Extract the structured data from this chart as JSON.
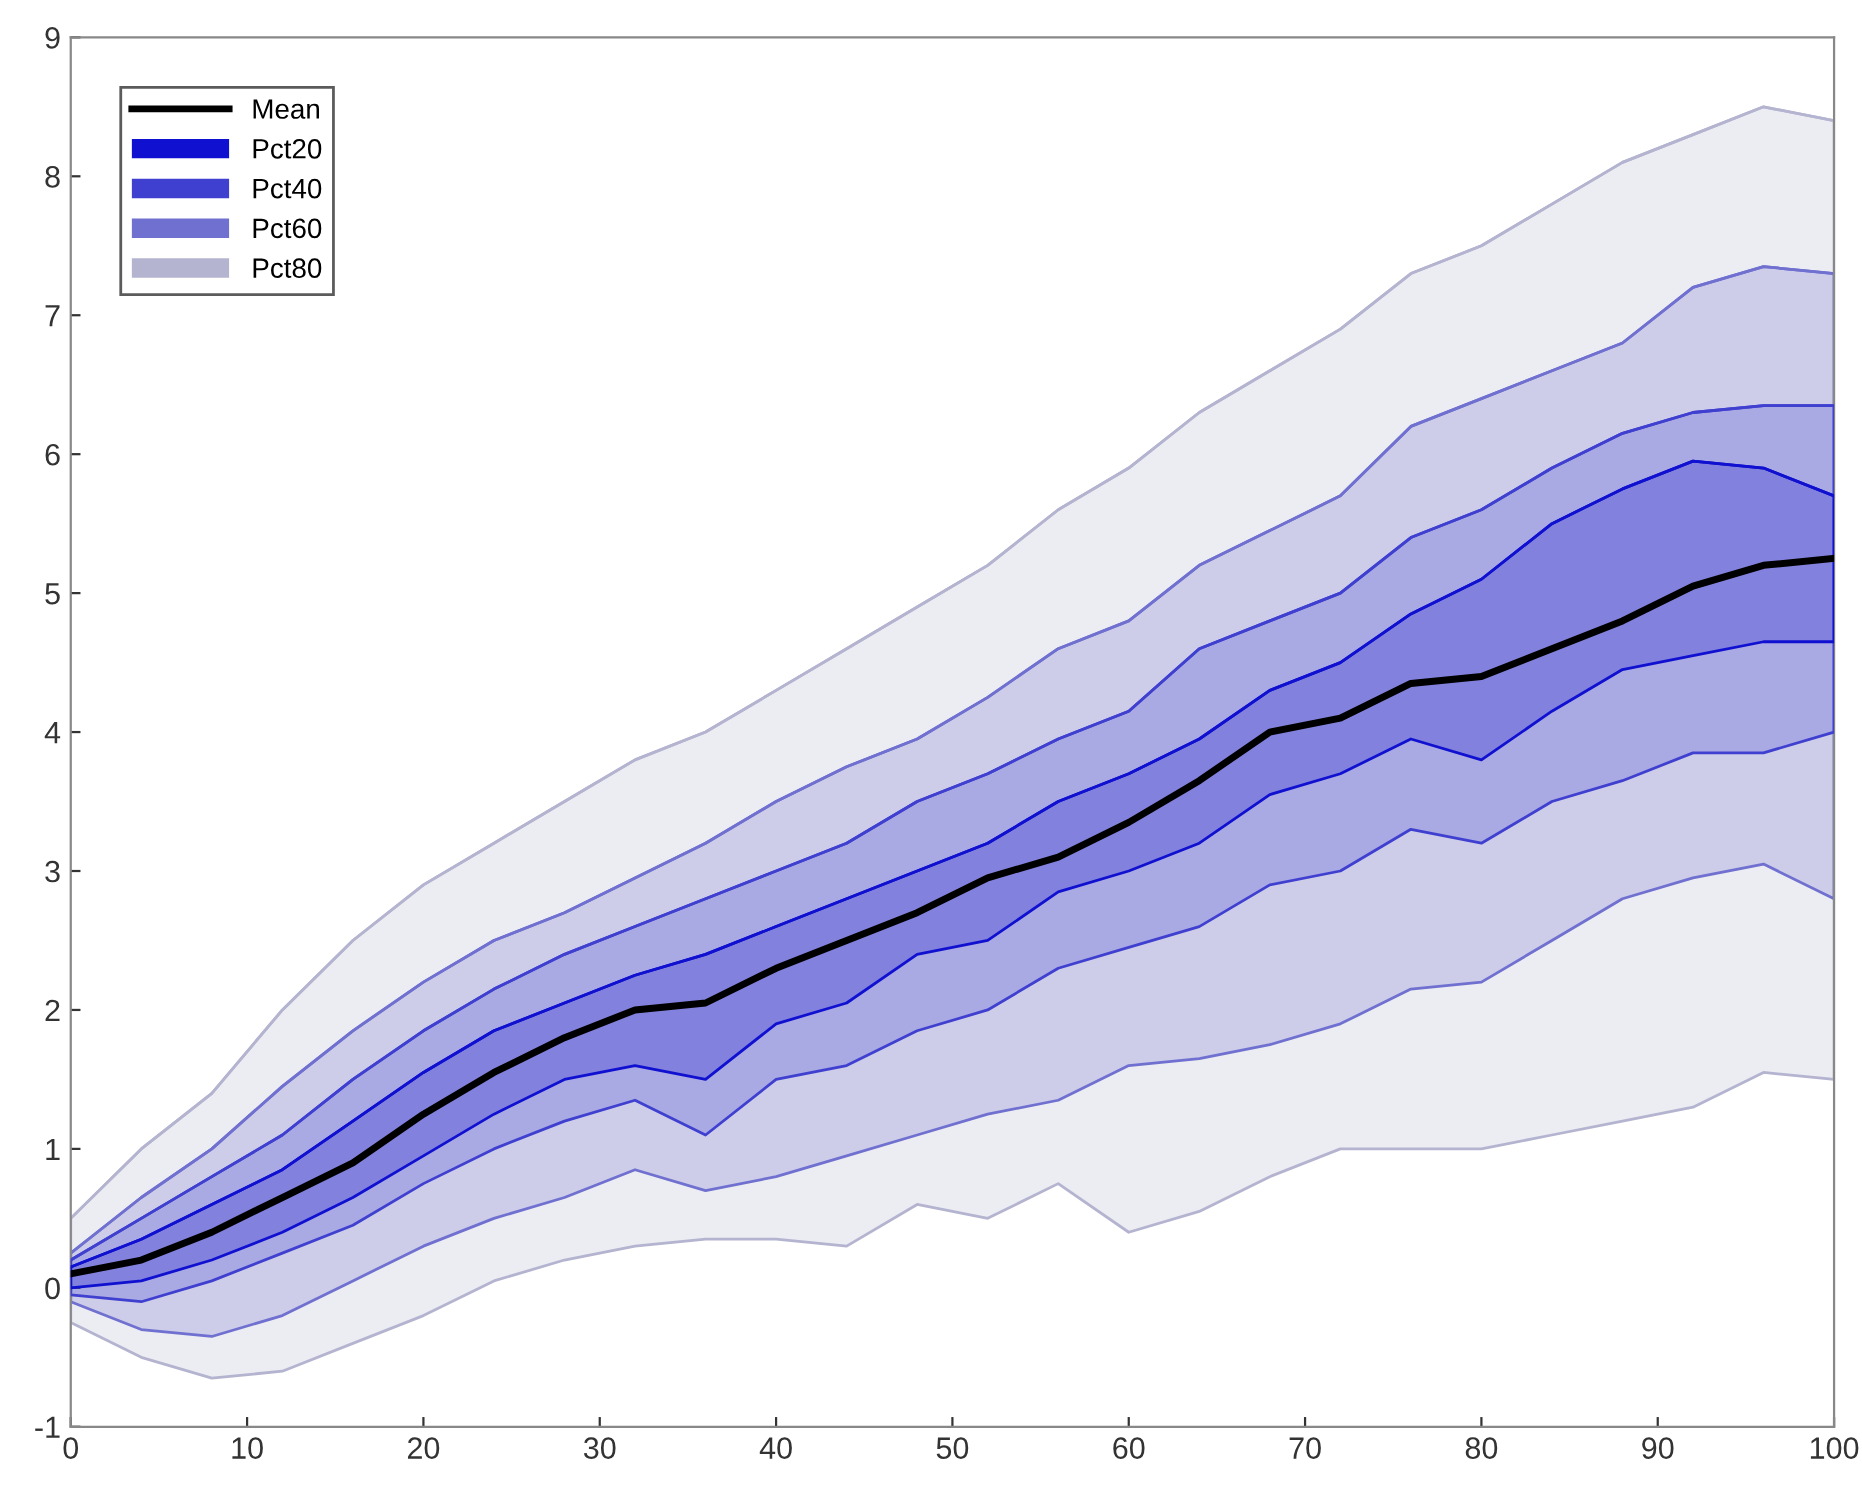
{
  "chart_data": {
    "type": "line",
    "x": [
      0,
      4,
      8,
      12,
      16,
      20,
      24,
      28,
      32,
      36,
      40,
      44,
      48,
      52,
      56,
      60,
      64,
      68,
      72,
      76,
      80,
      84,
      88,
      92,
      96,
      100
    ],
    "series": [
      {
        "name": "Pct80",
        "color": "#b4b4d0",
        "values": [
          0.5,
          1.0,
          1.4,
          2.0,
          2.5,
          2.9,
          3.2,
          3.5,
          3.8,
          4.0,
          4.3,
          4.6,
          4.9,
          5.2,
          5.6,
          5.9,
          6.3,
          6.6,
          6.9,
          7.3,
          7.5,
          7.8,
          8.1,
          8.3,
          8.5,
          8.4
        ],
        "lower": [
          -0.25,
          -0.5,
          -0.65,
          -0.6,
          -0.4,
          -0.2,
          0.05,
          0.2,
          0.3,
          0.35,
          0.35,
          0.3,
          0.6,
          0.5,
          0.75,
          0.4,
          0.55,
          0.8,
          1.0,
          1.0,
          1.0,
          1.1,
          1.2,
          1.3,
          1.55,
          1.5
        ],
        "upper": [
          0.5,
          1.0,
          1.4,
          2.0,
          2.5,
          2.9,
          3.2,
          3.5,
          3.8,
          4.0,
          4.3,
          4.6,
          4.9,
          5.2,
          5.6,
          5.9,
          6.3,
          6.6,
          6.9,
          7.3,
          7.5,
          7.8,
          8.1,
          8.3,
          8.5,
          8.4
        ]
      },
      {
        "name": "Pct60",
        "color": "#7070d0",
        "values": [
          0.25,
          0.65,
          1.0,
          1.45,
          1.85,
          2.2,
          2.5,
          2.7,
          2.95,
          3.2,
          3.5,
          3.75,
          3.95,
          4.25,
          4.6,
          4.8,
          5.2,
          5.45,
          5.7,
          6.2,
          6.4,
          6.6,
          6.8,
          7.2,
          7.35,
          7.3
        ],
        "lower": [
          -0.1,
          -0.3,
          -0.35,
          -0.2,
          0.05,
          0.3,
          0.5,
          0.65,
          0.85,
          0.7,
          0.8,
          0.95,
          1.1,
          1.25,
          1.35,
          1.6,
          1.65,
          1.75,
          1.9,
          2.15,
          2.2,
          2.5,
          2.8,
          2.95,
          3.05,
          2.8
        ],
        "upper": [
          0.25,
          0.65,
          1.0,
          1.45,
          1.85,
          2.2,
          2.5,
          2.7,
          2.95,
          3.2,
          3.5,
          3.75,
          3.95,
          4.25,
          4.6,
          4.8,
          5.2,
          5.45,
          5.7,
          6.2,
          6.4,
          6.6,
          6.8,
          7.2,
          7.35,
          7.3
        ]
      },
      {
        "name": "Pct40",
        "color": "#4040d0",
        "values": [
          0.2,
          0.5,
          0.8,
          1.1,
          1.5,
          1.85,
          2.15,
          2.4,
          2.6,
          2.8,
          3.0,
          3.2,
          3.5,
          3.7,
          3.95,
          4.15,
          4.6,
          4.8,
          5.0,
          5.4,
          5.6,
          5.9,
          6.15,
          6.3,
          6.35,
          6.35
        ],
        "lower": [
          -0.05,
          -0.1,
          0.05,
          0.25,
          0.45,
          0.75,
          1.0,
          1.2,
          1.35,
          1.1,
          1.5,
          1.6,
          1.85,
          2.0,
          2.3,
          2.45,
          2.6,
          2.9,
          3.0,
          3.3,
          3.2,
          3.5,
          3.65,
          3.85,
          3.85,
          4.0
        ],
        "upper": [
          0.2,
          0.5,
          0.8,
          1.1,
          1.5,
          1.85,
          2.15,
          2.4,
          2.6,
          2.8,
          3.0,
          3.2,
          3.5,
          3.7,
          3.95,
          4.15,
          4.6,
          4.8,
          5.0,
          5.4,
          5.6,
          5.9,
          6.15,
          6.3,
          6.35,
          6.35
        ]
      },
      {
        "name": "Pct20",
        "color": "#1010d0",
        "values": [
          0.15,
          0.35,
          0.6,
          0.85,
          1.2,
          1.55,
          1.85,
          2.05,
          2.25,
          2.4,
          2.6,
          2.8,
          3.0,
          3.2,
          3.5,
          3.7,
          3.95,
          4.3,
          4.5,
          4.85,
          5.1,
          5.5,
          5.75,
          5.95,
          5.9,
          5.7
        ],
        "lower": [
          0.0,
          0.05,
          0.2,
          0.4,
          0.65,
          0.95,
          1.25,
          1.5,
          1.6,
          1.5,
          1.9,
          2.05,
          2.4,
          2.5,
          2.85,
          3.0,
          3.2,
          3.55,
          3.7,
          3.95,
          3.8,
          4.15,
          4.45,
          4.55,
          4.65,
          4.65
        ],
        "upper": [
          0.15,
          0.35,
          0.6,
          0.85,
          1.2,
          1.55,
          1.85,
          2.05,
          2.25,
          2.4,
          2.6,
          2.8,
          3.0,
          3.2,
          3.5,
          3.7,
          3.95,
          4.3,
          4.5,
          4.85,
          5.1,
          5.5,
          5.75,
          5.95,
          5.9,
          5.7
        ]
      },
      {
        "name": "Mean",
        "color": "#000000",
        "values": [
          0.1,
          0.2,
          0.4,
          0.65,
          0.9,
          1.25,
          1.55,
          1.8,
          2.0,
          2.05,
          2.3,
          2.5,
          2.7,
          2.95,
          3.1,
          3.35,
          3.65,
          4.0,
          4.1,
          4.35,
          4.4,
          4.6,
          4.8,
          5.05,
          5.2,
          5.25
        ]
      }
    ],
    "xlim": [
      0,
      100
    ],
    "xticks": [
      0,
      10,
      20,
      30,
      40,
      50,
      60,
      70,
      80,
      90,
      100
    ],
    "ylim": [
      -1,
      9
    ],
    "yticks": [
      -1,
      0,
      1,
      2,
      3,
      4,
      5,
      6,
      7,
      8,
      9
    ],
    "grid": false,
    "legend": "top left",
    "line_style": "solid",
    "marker": "none"
  }
}
